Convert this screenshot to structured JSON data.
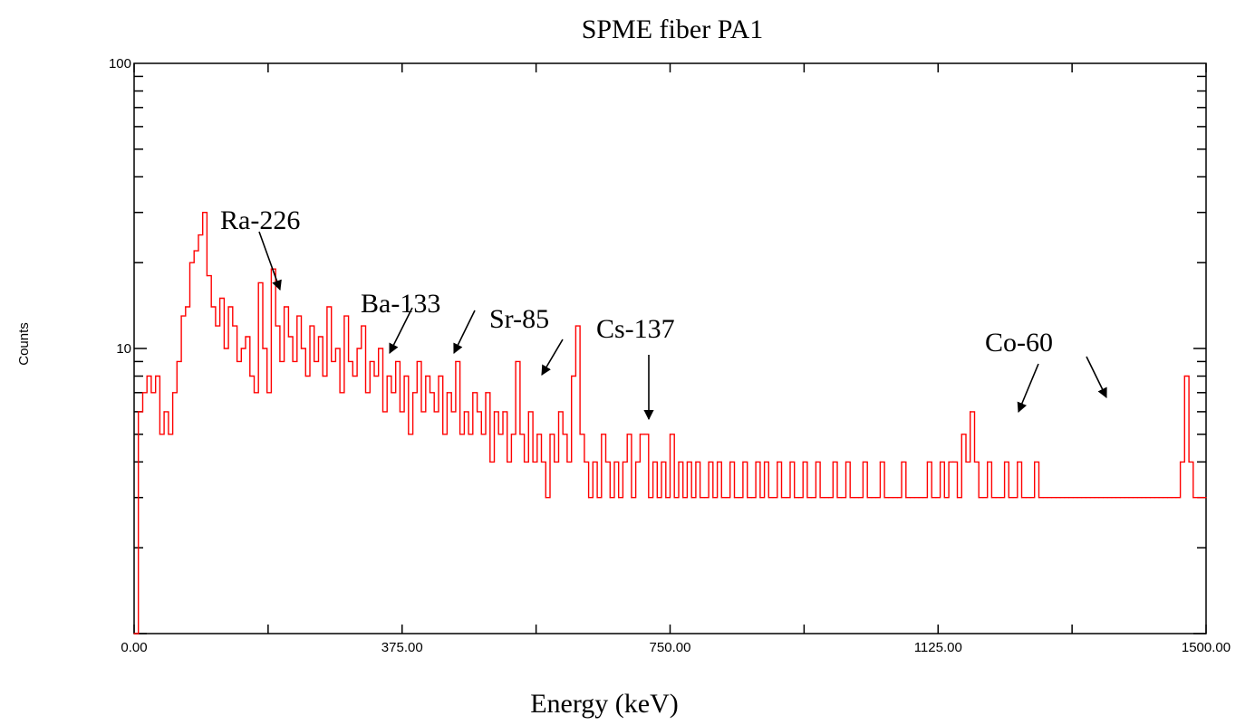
{
  "chart_data": {
    "type": "line",
    "title": "SPME fiber PA1",
    "xlabel": "Energy (keV)",
    "ylabel": "Counts",
    "xlim": [
      0,
      1500
    ],
    "ylim": [
      1,
      100
    ],
    "yscale": "log",
    "x_tick_labels": [
      "0.00",
      "375.00",
      "750.00",
      "1125.00",
      "1500.00"
    ],
    "y_tick_labels": [
      "10",
      "100"
    ],
    "grid": false,
    "series": [
      {
        "color": "#ff0000",
        "points": [
          [
            0,
            1
          ],
          [
            6,
            6
          ],
          [
            12,
            7
          ],
          [
            18,
            8
          ],
          [
            24,
            7
          ],
          [
            30,
            8
          ],
          [
            36,
            5
          ],
          [
            42,
            6
          ],
          [
            48,
            5
          ],
          [
            54,
            7
          ],
          [
            60,
            9
          ],
          [
            66,
            13
          ],
          [
            72,
            14
          ],
          [
            78,
            20
          ],
          [
            84,
            22
          ],
          [
            90,
            25
          ],
          [
            96,
            30
          ],
          [
            102,
            18
          ],
          [
            108,
            14
          ],
          [
            114,
            12
          ],
          [
            120,
            15
          ],
          [
            126,
            10
          ],
          [
            132,
            14
          ],
          [
            138,
            12
          ],
          [
            144,
            9
          ],
          [
            150,
            10
          ],
          [
            156,
            11
          ],
          [
            162,
            8
          ],
          [
            168,
            7
          ],
          [
            174,
            17
          ],
          [
            180,
            10
          ],
          [
            186,
            7
          ],
          [
            192,
            19
          ],
          [
            198,
            12
          ],
          [
            204,
            9
          ],
          [
            210,
            14
          ],
          [
            216,
            11
          ],
          [
            222,
            9
          ],
          [
            228,
            13
          ],
          [
            234,
            10
          ],
          [
            240,
            8
          ],
          [
            246,
            12
          ],
          [
            252,
            9
          ],
          [
            258,
            11
          ],
          [
            264,
            8
          ],
          [
            270,
            14
          ],
          [
            276,
            9
          ],
          [
            282,
            10
          ],
          [
            288,
            7
          ],
          [
            294,
            13
          ],
          [
            300,
            9
          ],
          [
            306,
            8
          ],
          [
            312,
            10
          ],
          [
            318,
            12
          ],
          [
            324,
            7
          ],
          [
            330,
            9
          ],
          [
            336,
            8
          ],
          [
            342,
            10
          ],
          [
            348,
            6
          ],
          [
            354,
            8
          ],
          [
            360,
            7
          ],
          [
            366,
            9
          ],
          [
            372,
            6
          ],
          [
            378,
            8
          ],
          [
            384,
            5
          ],
          [
            390,
            7
          ],
          [
            396,
            9
          ],
          [
            402,
            6
          ],
          [
            408,
            8
          ],
          [
            414,
            7
          ],
          [
            420,
            6
          ],
          [
            426,
            8
          ],
          [
            432,
            5
          ],
          [
            438,
            7
          ],
          [
            444,
            6
          ],
          [
            450,
            9
          ],
          [
            456,
            5
          ],
          [
            462,
            6
          ],
          [
            468,
            5
          ],
          [
            474,
            7
          ],
          [
            480,
            6
          ],
          [
            486,
            5
          ],
          [
            492,
            7
          ],
          [
            498,
            4
          ],
          [
            504,
            6
          ],
          [
            510,
            5
          ],
          [
            516,
            6
          ],
          [
            522,
            4
          ],
          [
            528,
            5
          ],
          [
            534,
            9
          ],
          [
            540,
            5
          ],
          [
            546,
            4
          ],
          [
            552,
            6
          ],
          [
            558,
            4
          ],
          [
            564,
            5
          ],
          [
            570,
            4
          ],
          [
            576,
            3
          ],
          [
            582,
            5
          ],
          [
            588,
            4
          ],
          [
            594,
            6
          ],
          [
            600,
            5
          ],
          [
            606,
            4
          ],
          [
            612,
            8
          ],
          [
            618,
            12
          ],
          [
            624,
            5
          ],
          [
            630,
            4
          ],
          [
            636,
            3
          ],
          [
            642,
            4
          ],
          [
            648,
            3
          ],
          [
            654,
            5
          ],
          [
            660,
            4
          ],
          [
            666,
            3
          ],
          [
            672,
            4
          ],
          [
            678,
            3
          ],
          [
            684,
            4
          ],
          [
            690,
            5
          ],
          [
            696,
            3
          ],
          [
            702,
            4
          ],
          [
            708,
            5
          ],
          [
            714,
            5
          ],
          [
            720,
            3
          ],
          [
            726,
            4
          ],
          [
            732,
            3
          ],
          [
            738,
            4
          ],
          [
            744,
            3
          ],
          [
            750,
            5
          ],
          [
            756,
            3
          ],
          [
            762,
            4
          ],
          [
            768,
            3
          ],
          [
            774,
            4
          ],
          [
            780,
            3
          ],
          [
            786,
            4
          ],
          [
            792,
            3
          ],
          [
            798,
            3
          ],
          [
            804,
            4
          ],
          [
            810,
            3
          ],
          [
            816,
            4
          ],
          [
            822,
            3
          ],
          [
            828,
            3
          ],
          [
            834,
            4
          ],
          [
            840,
            3
          ],
          [
            846,
            3
          ],
          [
            852,
            4
          ],
          [
            858,
            3
          ],
          [
            864,
            3
          ],
          [
            870,
            4
          ],
          [
            876,
            3
          ],
          [
            882,
            4
          ],
          [
            888,
            3
          ],
          [
            894,
            3
          ],
          [
            900,
            4
          ],
          [
            906,
            3
          ],
          [
            912,
            3
          ],
          [
            918,
            4
          ],
          [
            924,
            3
          ],
          [
            930,
            3
          ],
          [
            936,
            4
          ],
          [
            942,
            3
          ],
          [
            948,
            3
          ],
          [
            954,
            4
          ],
          [
            960,
            3
          ],
          [
            966,
            3
          ],
          [
            972,
            3
          ],
          [
            978,
            4
          ],
          [
            984,
            3
          ],
          [
            990,
            3
          ],
          [
            996,
            4
          ],
          [
            1002,
            3
          ],
          [
            1008,
            3
          ],
          [
            1014,
            3
          ],
          [
            1020,
            4
          ],
          [
            1026,
            3
          ],
          [
            1032,
            3
          ],
          [
            1038,
            3
          ],
          [
            1044,
            4
          ],
          [
            1050,
            3
          ],
          [
            1056,
            3
          ],
          [
            1062,
            3
          ],
          [
            1068,
            3
          ],
          [
            1074,
            4
          ],
          [
            1080,
            3
          ],
          [
            1086,
            3
          ],
          [
            1092,
            3
          ],
          [
            1098,
            3
          ],
          [
            1104,
            3
          ],
          [
            1110,
            4
          ],
          [
            1116,
            3
          ],
          [
            1122,
            3
          ],
          [
            1128,
            4
          ],
          [
            1134,
            3
          ],
          [
            1140,
            4
          ],
          [
            1146,
            4
          ],
          [
            1152,
            3
          ],
          [
            1158,
            5
          ],
          [
            1164,
            4
          ],
          [
            1170,
            6
          ],
          [
            1176,
            4
          ],
          [
            1182,
            3
          ],
          [
            1188,
            3
          ],
          [
            1194,
            4
          ],
          [
            1200,
            3
          ],
          [
            1206,
            3
          ],
          [
            1212,
            3
          ],
          [
            1218,
            4
          ],
          [
            1224,
            3
          ],
          [
            1230,
            3
          ],
          [
            1236,
            4
          ],
          [
            1242,
            3
          ],
          [
            1248,
            3
          ],
          [
            1254,
            3
          ],
          [
            1260,
            4
          ],
          [
            1266,
            3
          ],
          [
            1272,
            3
          ],
          [
            1278,
            3
          ],
          [
            1284,
            3
          ],
          [
            1290,
            3
          ],
          [
            1296,
            3
          ],
          [
            1302,
            3
          ],
          [
            1308,
            3
          ],
          [
            1314,
            3
          ],
          [
            1320,
            3
          ],
          [
            1326,
            3
          ],
          [
            1332,
            3
          ],
          [
            1338,
            3
          ],
          [
            1344,
            3
          ],
          [
            1350,
            3
          ],
          [
            1356,
            3
          ],
          [
            1362,
            3
          ],
          [
            1368,
            3
          ],
          [
            1374,
            3
          ],
          [
            1380,
            3
          ],
          [
            1386,
            3
          ],
          [
            1392,
            3
          ],
          [
            1398,
            3
          ],
          [
            1404,
            3
          ],
          [
            1410,
            3
          ],
          [
            1416,
            3
          ],
          [
            1422,
            3
          ],
          [
            1428,
            3
          ],
          [
            1434,
            3
          ],
          [
            1440,
            3
          ],
          [
            1446,
            3
          ],
          [
            1452,
            3
          ],
          [
            1458,
            3
          ],
          [
            1464,
            4
          ],
          [
            1470,
            8
          ],
          [
            1476,
            4
          ],
          [
            1482,
            3
          ],
          [
            1488,
            3
          ],
          [
            1494,
            3
          ],
          [
            1500,
            3
          ]
        ]
      }
    ],
    "annotations": [
      {
        "label": "Ra-226"
      },
      {
        "label": "Ba-133"
      },
      {
        "label": "Sr-85"
      },
      {
        "label": "Cs-137"
      },
      {
        "label": "Co-60"
      }
    ]
  }
}
